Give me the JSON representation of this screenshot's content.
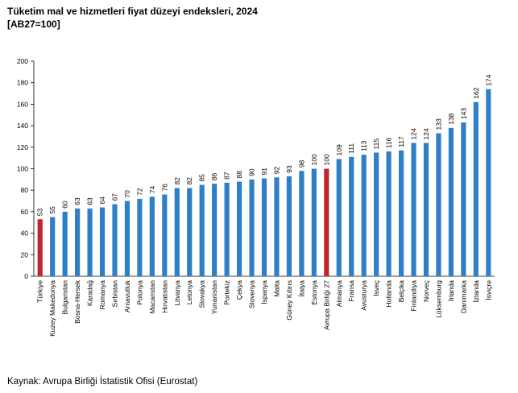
{
  "title": "Tüketim mal ve hizmetleri fiyat düzeyi endeksleri, 2024",
  "subtitle": "[AB27=100]",
  "source": "Kaynak: Avrupa Birliği İstatistik Ofisi (Eurostat)",
  "colors": {
    "default": "#2f7fc6",
    "highlight": "#c0262d"
  },
  "chart_data": {
    "type": "bar",
    "title": "Tüketim mal ve hizmetleri fiyat düzeyi endeksleri, 2024",
    "subtitle": "[AB27=100]",
    "categories": [
      "Türkiye",
      "Kuzey Makedonya",
      "Bulgaristan",
      "Bosna-Hersek",
      "Karadağ",
      "Romanya",
      "Sırbistan",
      "Arnavutluk",
      "Polonya",
      "Macaristan",
      "Hırvatistan",
      "Litvanya",
      "Letonya",
      "Slovakya",
      "Yunanistan",
      "Portekiz",
      "Çekya",
      "Slovenya",
      "İspanya",
      "Malta",
      "Güney Kıbrıs",
      "İtalya",
      "Estonya",
      "Avrupa Birliği 27",
      "Almanya",
      "Fransa",
      "Avusturya",
      "İsveç",
      "Hollanda",
      "Belçika",
      "Finlandiya",
      "Norveç",
      "Lüksemburg",
      "İrlanda",
      "Danimarka",
      "İzlanda",
      "İsviçre"
    ],
    "values": [
      53,
      55,
      60,
      63,
      63,
      64,
      67,
      70,
      72,
      74,
      76,
      82,
      82,
      85,
      86,
      87,
      88,
      90,
      91,
      92,
      93,
      98,
      100,
      100,
      109,
      111,
      113,
      115,
      116,
      117,
      124,
      124,
      133,
      138,
      143,
      162,
      174
    ],
    "highlight": [
      "Türkiye",
      "Avrupa Birliği 27"
    ],
    "xlabel": "",
    "ylabel": "",
    "ylim": [
      0,
      200
    ],
    "yticks": [
      0,
      20,
      40,
      60,
      80,
      100,
      120,
      140,
      160,
      180,
      200
    ],
    "grid": false,
    "legend": "none"
  }
}
